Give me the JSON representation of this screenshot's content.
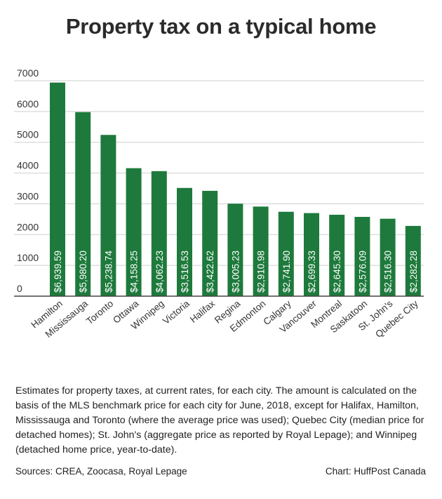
{
  "title": "Property tax on a typical home",
  "chart_data": {
    "type": "bar",
    "title": "Property tax on a typical home",
    "xlabel": "",
    "ylabel": "",
    "ylim": [
      0,
      7000
    ],
    "yticks": [
      0,
      1000,
      2000,
      3000,
      4000,
      5000,
      6000,
      7000
    ],
    "grid": true,
    "bar_color": "#1e7a3c",
    "categories": [
      "Hamilton",
      "Mississauga",
      "Toronto",
      "Ottawa",
      "Winnipeg",
      "Victoria",
      "Halifax",
      "Regina",
      "Edmonton",
      "Calgary",
      "Vancouver",
      "Montreal",
      "Saskatoon",
      "St. John's",
      "Quebec City"
    ],
    "values": [
      6939.59,
      5980.2,
      5238.74,
      4158.25,
      4062.23,
      3516.53,
      3422.62,
      3005.23,
      2910.98,
      2741.9,
      2699.33,
      2645.3,
      2576.09,
      2516.3,
      2282.28
    ],
    "data_labels": [
      "$6,939.59",
      "$5,980.20",
      "$5,238.74",
      "$4,158.25",
      "$4,062.23",
      "$3,516.53",
      "$3,422.62",
      "$3,005.23",
      "$2,910.98",
      "$2,741.90",
      "$2,699.33",
      "$2,645.30",
      "$2,576.09",
      "$2,516.30",
      "$2,282.28"
    ]
  },
  "note": "Estimates for property taxes, at current rates, for each city. The amount is calculated on the basis of the MLS benchmark price for each city for June, 2018, except for Halifax, Hamilton, Mississauga and Toronto (where the average price was used); Quebec City (median price for detached homes); St. John's (aggregate price as reported by Royal Lepage); and Winnipeg (detached home price, year-to-date).",
  "sources": "Sources: CREA, Zoocasa, Royal Lepage",
  "credit": "Chart: HuffPost Canada"
}
